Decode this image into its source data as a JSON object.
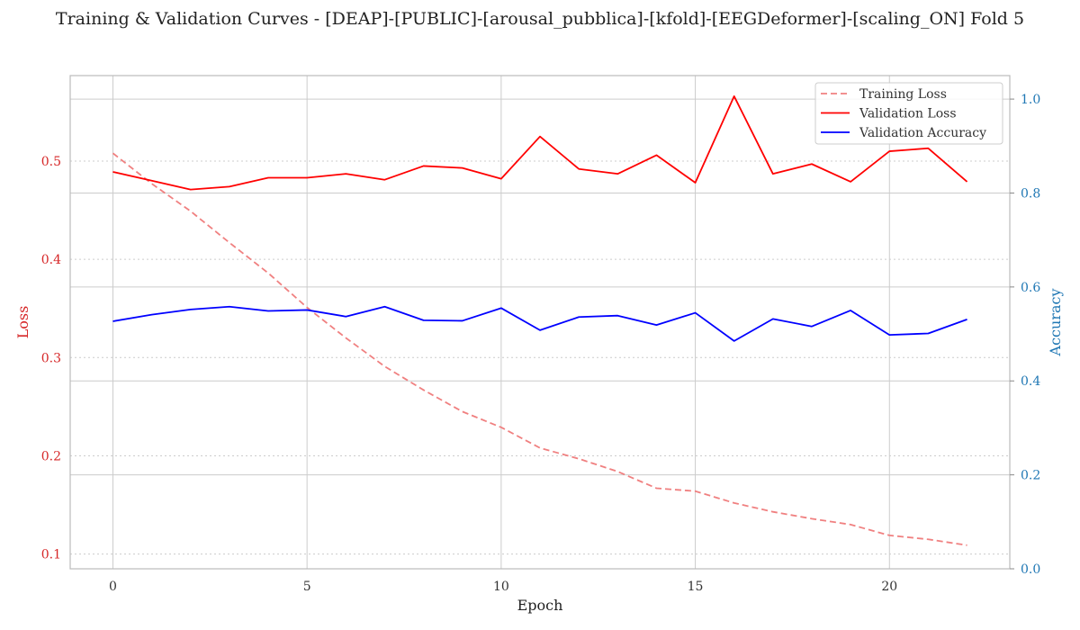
{
  "chart_data": {
    "type": "line",
    "title": "Training & Validation Curves - [DEAP]-[PUBLIC]-[arousal_pubblica]-[kfold]-[EEGDeformer]-[scaling_ON] Fold 5",
    "xlabel": "Epoch",
    "ylabel_left": "Loss",
    "ylabel_right": "Accuracy",
    "x": [
      0,
      1,
      2,
      3,
      4,
      5,
      6,
      7,
      8,
      9,
      10,
      11,
      12,
      13,
      14,
      15,
      16,
      17,
      18,
      19,
      20,
      21,
      22
    ],
    "xlim": [
      -1.1,
      23.1
    ],
    "ylim_left": [
      0.085,
      0.587
    ],
    "ylim_right": [
      0.0,
      1.05
    ],
    "xticks": [
      "0",
      "5",
      "10",
      "15",
      "20"
    ],
    "xtick_values": [
      0,
      5,
      10,
      15,
      20
    ],
    "yticks_left": [
      "0.1",
      "0.2",
      "0.3",
      "0.4",
      "0.5"
    ],
    "ytick_values_left": [
      0.1,
      0.2,
      0.3,
      0.4,
      0.5
    ],
    "yticks_right": [
      "0.0",
      "0.2",
      "0.4",
      "0.6",
      "0.8",
      "1.0"
    ],
    "ytick_values_right": [
      0.0,
      0.2,
      0.4,
      0.6,
      0.8,
      1.0
    ],
    "grid": true,
    "legend_position": "top-right",
    "series": [
      {
        "name": "Training Loss",
        "axis": "left",
        "style": "dashed",
        "color": "#f08080",
        "values": [
          0.508,
          0.477,
          0.449,
          0.417,
          0.386,
          0.351,
          0.32,
          0.291,
          0.267,
          0.245,
          0.229,
          0.208,
          0.197,
          0.184,
          0.167,
          0.164,
          0.152,
          0.143,
          0.136,
          0.13,
          0.119,
          0.115,
          0.109
        ]
      },
      {
        "name": "Validation Loss",
        "axis": "left",
        "style": "solid",
        "color": "#ff0000",
        "values": [
          0.489,
          0.48,
          0.471,
          0.474,
          0.483,
          0.483,
          0.487,
          0.481,
          0.495,
          0.493,
          0.482,
          0.525,
          0.492,
          0.487,
          0.506,
          0.478,
          0.566,
          0.487,
          0.497,
          0.479,
          0.51,
          0.513,
          0.479
        ]
      },
      {
        "name": "Validation Accuracy",
        "axis": "right",
        "style": "solid",
        "color": "#0000ff",
        "values": [
          0.527,
          0.541,
          0.552,
          0.558,
          0.549,
          0.551,
          0.537,
          0.558,
          0.529,
          0.528,
          0.555,
          0.508,
          0.536,
          0.539,
          0.519,
          0.545,
          0.485,
          0.532,
          0.516,
          0.55,
          0.498,
          0.501,
          0.531
        ]
      }
    ],
    "colors": {
      "left_axis": "#d62728",
      "right_axis": "#1f77b4",
      "grid": "#cccccc",
      "frame": "#bbbbbb"
    }
  }
}
